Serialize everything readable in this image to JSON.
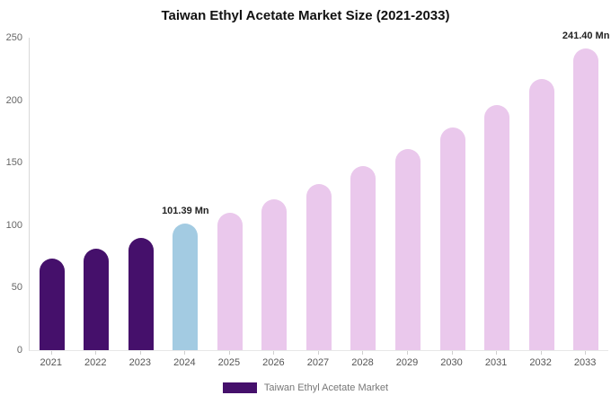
{
  "title": "Taiwan Ethyl Acetate Market Size (2021-2033)",
  "legend": {
    "label": "Taiwan Ethyl Acetate Market",
    "color": "#45106b"
  },
  "colors": {
    "historical_bar": "#45106b",
    "highlight_bar": "#a3cbe2",
    "forecast_bar": "#eac8ec",
    "axis_text": "#666666",
    "background": "#ffffff"
  },
  "chart_data": {
    "type": "bar",
    "title": "Taiwan Ethyl Acetate Market Size (2021-2033)",
    "categories": [
      "2021",
      "2022",
      "2023",
      "2024",
      "2025",
      "2026",
      "2027",
      "2028",
      "2029",
      "2030",
      "2031",
      "2032",
      "2033"
    ],
    "values": [
      73,
      81,
      90,
      101.39,
      110,
      121,
      133,
      147,
      161,
      178,
      196,
      217,
      241.4
    ],
    "unit": "Mn",
    "bar_colors": [
      "#45106b",
      "#45106b",
      "#45106b",
      "#a3cbe2",
      "#eac8ec",
      "#eac8ec",
      "#eac8ec",
      "#eac8ec",
      "#eac8ec",
      "#eac8ec",
      "#eac8ec",
      "#eac8ec",
      "#eac8ec"
    ],
    "data_labels": [
      "",
      "",
      "",
      "101.39 Mn",
      "",
      "",
      "",
      "",
      "",
      "",
      "",
      "",
      "241.40 Mn"
    ],
    "xlabel": "",
    "ylabel": "",
    "ylim": [
      0,
      250
    ],
    "yticks": [
      0,
      50,
      100,
      150,
      200,
      250
    ],
    "grid": false,
    "legend_position": "bottom"
  }
}
